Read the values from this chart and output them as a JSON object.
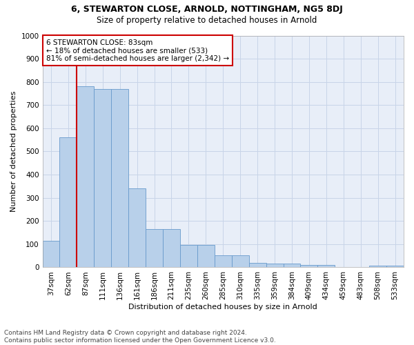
{
  "title1": "6, STEWARTON CLOSE, ARNOLD, NOTTINGHAM, NG5 8DJ",
  "title2": "Size of property relative to detached houses in Arnold",
  "xlabel": "Distribution of detached houses by size in Arnold",
  "ylabel": "Number of detached properties",
  "categories": [
    "37sqm",
    "62sqm",
    "87sqm",
    "111sqm",
    "136sqm",
    "161sqm",
    "186sqm",
    "211sqm",
    "235sqm",
    "260sqm",
    "285sqm",
    "310sqm",
    "335sqm",
    "359sqm",
    "384sqm",
    "409sqm",
    "434sqm",
    "459sqm",
    "483sqm",
    "508sqm",
    "533sqm"
  ],
  "values": [
    113,
    562,
    780,
    770,
    770,
    342,
    165,
    165,
    98,
    98,
    52,
    52,
    18,
    15,
    15,
    10,
    10,
    0,
    0,
    8,
    8
  ],
  "bar_color": "#b8d0ea",
  "bar_edge_color": "#6699cc",
  "vline_color": "#cc0000",
  "vline_x_index": 1.5,
  "annotation_text": "6 STEWARTON CLOSE: 83sqm\n← 18% of detached houses are smaller (533)\n81% of semi-detached houses are larger (2,342) →",
  "annotation_box_facecolor": "#ffffff",
  "annotation_box_edgecolor": "#cc0000",
  "ylim": [
    0,
    1000
  ],
  "yticks": [
    0,
    100,
    200,
    300,
    400,
    500,
    600,
    700,
    800,
    900,
    1000
  ],
  "grid_color": "#c8d4e8",
  "background_color": "#e8eef8",
  "footer": "Contains HM Land Registry data © Crown copyright and database right 2024.\nContains public sector information licensed under the Open Government Licence v3.0.",
  "title1_fontsize": 9,
  "title2_fontsize": 8.5,
  "xlabel_fontsize": 8,
  "ylabel_fontsize": 8,
  "tick_fontsize": 7.5,
  "ann_fontsize": 7.5,
  "footer_fontsize": 6.5
}
